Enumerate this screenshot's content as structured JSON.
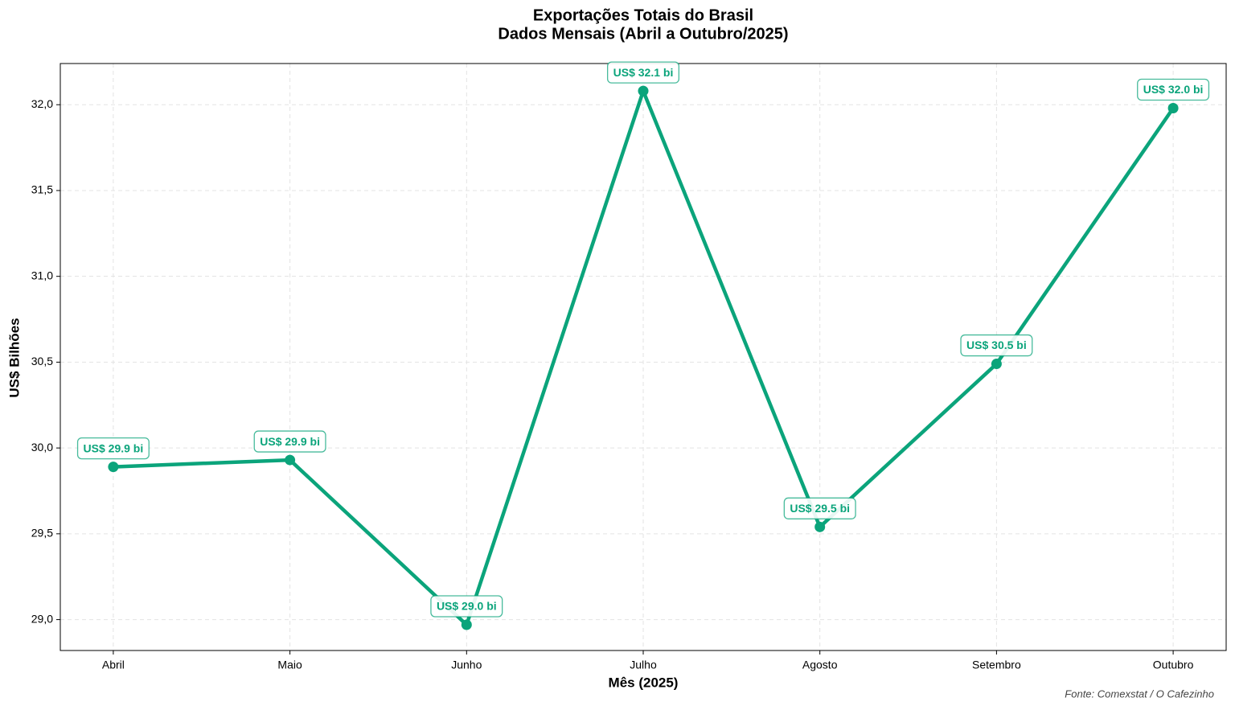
{
  "chart_data": {
    "type": "line",
    "title": "Exportações Totais do Brasil",
    "subtitle": "Dados Mensais (Abril a Outubro/2025)",
    "x_label": "Mês (2025)",
    "y_label": "US$ Bilhões",
    "source": "Fonte: Comexstat / O Cafezinho",
    "categories": [
      "Abril",
      "Maio",
      "Junho",
      "Julho",
      "Agosto",
      "Setembro",
      "Outubro"
    ],
    "values": [
      29.89,
      29.93,
      28.97,
      32.08,
      29.54,
      30.49,
      31.98
    ],
    "value_labels": [
      "US$ 29.9 bi",
      "US$ 29.9 bi",
      "US$ 29.0 bi",
      "US$ 32.1 bi",
      "US$ 29.5 bi",
      "US$ 30.5 bi",
      "US$ 32.0 bi"
    ],
    "color": "#0ba47b",
    "ylim": [
      28.82,
      32.24
    ],
    "yticks": [
      {
        "value": 29,
        "label": "29,0"
      },
      {
        "value": 29.5,
        "label": "29,5"
      },
      {
        "value": 30,
        "label": "30,0"
      },
      {
        "value": 30.5,
        "label": "30,5"
      },
      {
        "value": 31,
        "label": "31,0"
      },
      {
        "value": 31.5,
        "label": "31,5"
      },
      {
        "value": 32,
        "label": "32,0"
      }
    ],
    "grid": true
  }
}
